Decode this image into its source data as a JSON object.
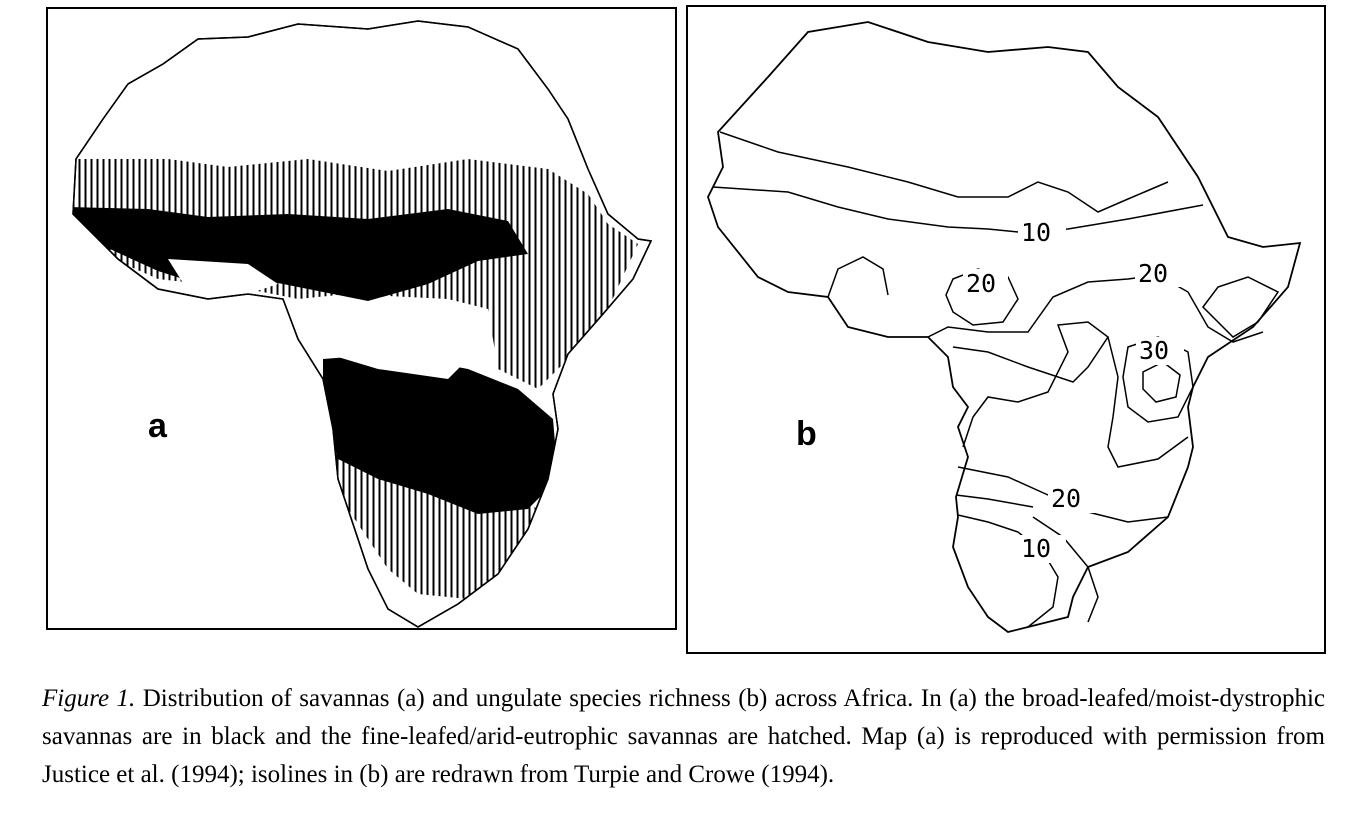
{
  "panel_a": {
    "label": "a"
  },
  "panel_b": {
    "label": "b",
    "isolines": [
      {
        "text": "10"
      },
      {
        "text": "20"
      },
      {
        "text": "20"
      },
      {
        "text": "30"
      },
      {
        "text": "20"
      },
      {
        "text": "10"
      }
    ]
  },
  "caption": {
    "figure_label": "Figure 1.",
    "text": " Distribution of savannas (a) and ungulate species richness (b) across Africa. In (a) the broad-leafed/moist-dystrophic savannas are in black and the fine-leafed/arid-eutrophic savannas are hatched. Map (a) is reproduced with permission from Justice et al. (1994); isolines in (b) are redrawn from Turpie and Crowe (1994)."
  },
  "colors": {
    "ink": "#000000",
    "paper": "#ffffff"
  }
}
